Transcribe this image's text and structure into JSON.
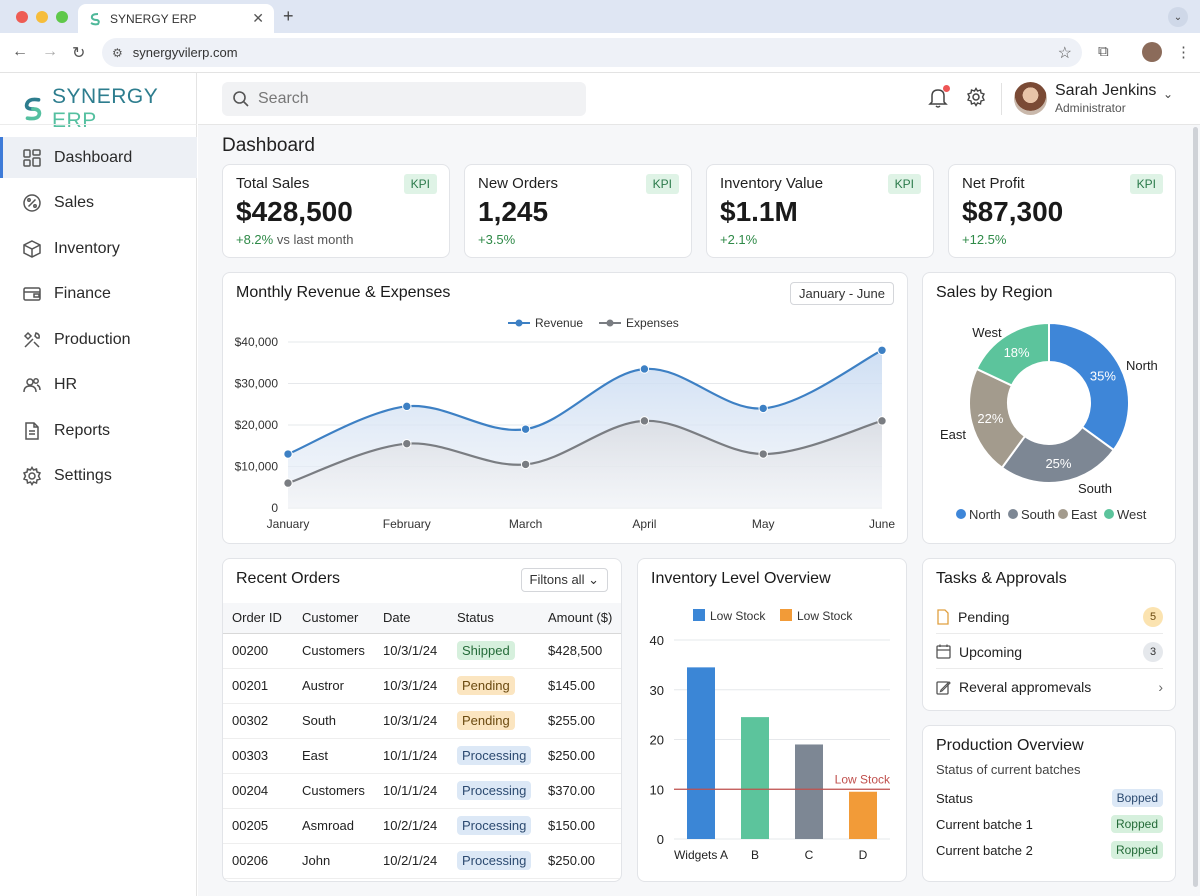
{
  "browser": {
    "tab_title": "SYNERGY ERP",
    "url": "synergyvilerp.com"
  },
  "app": {
    "brand": "SYNERGY",
    "brand_suffix": "ERP",
    "search_placeholder": "Search"
  },
  "user": {
    "name": "Sarah Jenkins",
    "role": "Administrator"
  },
  "sidebar": {
    "items": [
      {
        "label": "Dashboard",
        "icon": "dashboard-icon"
      },
      {
        "label": "Sales",
        "icon": "percent-icon"
      },
      {
        "label": "Inventory",
        "icon": "box-icon"
      },
      {
        "label": "Finance",
        "icon": "wallet-icon"
      },
      {
        "label": "Production",
        "icon": "tools-icon"
      },
      {
        "label": "HR",
        "icon": "users-icon"
      },
      {
        "label": "Reports",
        "icon": "document-icon"
      },
      {
        "label": "Settings",
        "icon": "gear-icon"
      }
    ]
  },
  "page_title": "Dashboard",
  "kpis": [
    {
      "label": "Total Sales",
      "tag": "KPI",
      "value": "$428,500",
      "change": "+8.2%",
      "note": " vs last month"
    },
    {
      "label": "New Orders",
      "tag": "KPI",
      "value": "1,245",
      "change": "+3.5%",
      "note": ""
    },
    {
      "label": "Inventory Value",
      "tag": "KPI",
      "value": "$1.1M",
      "change": "+2.1%",
      "note": ""
    },
    {
      "label": "Net Profit",
      "tag": "KPI",
      "value": "$87,300",
      "change": "+12.5%",
      "note": ""
    }
  ],
  "revenue_card": {
    "title": "Monthly Revenue & Expenses",
    "range": "January - June"
  },
  "region_card": {
    "title": "Sales by Region"
  },
  "orders_card": {
    "title": "Recent Orders",
    "filter": "Filtons all",
    "headers": [
      "Order ID",
      "Customer",
      "Date",
      "Status",
      "Amount ($)"
    ],
    "rows": [
      {
        "id": "00200",
        "customer": "Customers",
        "date": "10/3/1/24",
        "status": "Shipped",
        "amount": "$428,500"
      },
      {
        "id": "00201",
        "customer": "Austror",
        "date": "10/3/1/24",
        "status": "Pending",
        "amount": "$145.00"
      },
      {
        "id": "00302",
        "customer": "South",
        "date": "10/3/1/24",
        "status": "Pending",
        "amount": "$255.00"
      },
      {
        "id": "00303",
        "customer": "East",
        "date": "10/1/1/24",
        "status": "Processing",
        "amount": "$250.00"
      },
      {
        "id": "00204",
        "customer": "Customers",
        "date": "10/1/1/24",
        "status": "Processing",
        "amount": "$370.00"
      },
      {
        "id": "00205",
        "customer": "Asmroad",
        "date": "10/2/1/24",
        "status": "Processing",
        "amount": "$150.00"
      },
      {
        "id": "00206",
        "customer": "John",
        "date": "10/2/1/24",
        "status": "Processing",
        "amount": "$250.00"
      }
    ]
  },
  "inventory_card": {
    "title": "Inventory Level Overview",
    "threshold_label": "Low Stock"
  },
  "tasks_card": {
    "title": "Tasks & Approvals",
    "items": [
      {
        "label": "Pending",
        "count": "5",
        "icon": "document-icon"
      },
      {
        "label": "Upcoming",
        "count": "3",
        "icon": "calendar-icon"
      },
      {
        "label": "Reveral appromevals",
        "count": "",
        "icon": "edit-icon"
      }
    ]
  },
  "production_card": {
    "title": "Production Overview",
    "subtitle": "Status of current batches",
    "rows": [
      {
        "label": "Status",
        "status": "Bopped"
      },
      {
        "label": "Current batche 1",
        "status": "Ropped"
      },
      {
        "label": "Current batche 2",
        "status": "Ropped"
      }
    ]
  },
  "colors": {
    "revenue": "#3d80c4",
    "expenses": "#7a7d82",
    "north": "#3e86d8",
    "south": "#7d8794",
    "east": "#a39b8d",
    "west": "#5cc49c",
    "bar_blue": "#3b86d6",
    "bar_orange": "#f29b38",
    "threshold": "#c0504d"
  },
  "chart_data": [
    {
      "type": "area",
      "title": "Monthly Revenue & Expenses",
      "categories": [
        "January",
        "February",
        "March",
        "April",
        "May",
        "June"
      ],
      "series": [
        {
          "name": "Revenue",
          "values": [
            13000,
            24500,
            19000,
            33500,
            24000,
            38000
          ]
        },
        {
          "name": "Expenses",
          "values": [
            6000,
            15500,
            10500,
            21000,
            13000,
            21000
          ]
        }
      ],
      "ylim": [
        0,
        40000
      ],
      "yticks": [
        "0",
        "$10,000",
        "$20,000",
        "$30,000",
        "$40,000"
      ],
      "legend": "top-center",
      "grid": true
    },
    {
      "type": "pie",
      "title": "Sales by Region",
      "categories": [
        "North",
        "South",
        "East",
        "West"
      ],
      "values": [
        35,
        25,
        22,
        18
      ],
      "value_labels": [
        "35%",
        "25%",
        "22%",
        "18%"
      ],
      "donut": true,
      "legend": "bottom"
    },
    {
      "type": "bar",
      "title": "Inventory Level Overview",
      "categories": [
        "Widgets A",
        "B",
        "C",
        "D"
      ],
      "values": [
        34.5,
        24.5,
        19,
        9.5
      ],
      "legend_entries": [
        "Low Stock",
        "Low Stock"
      ],
      "threshold": 10,
      "threshold_label": "Low Stock",
      "ylim": [
        0,
        40
      ],
      "yticks": [
        "0",
        "10",
        "20",
        "30",
        "40"
      ],
      "grid": true
    }
  ]
}
